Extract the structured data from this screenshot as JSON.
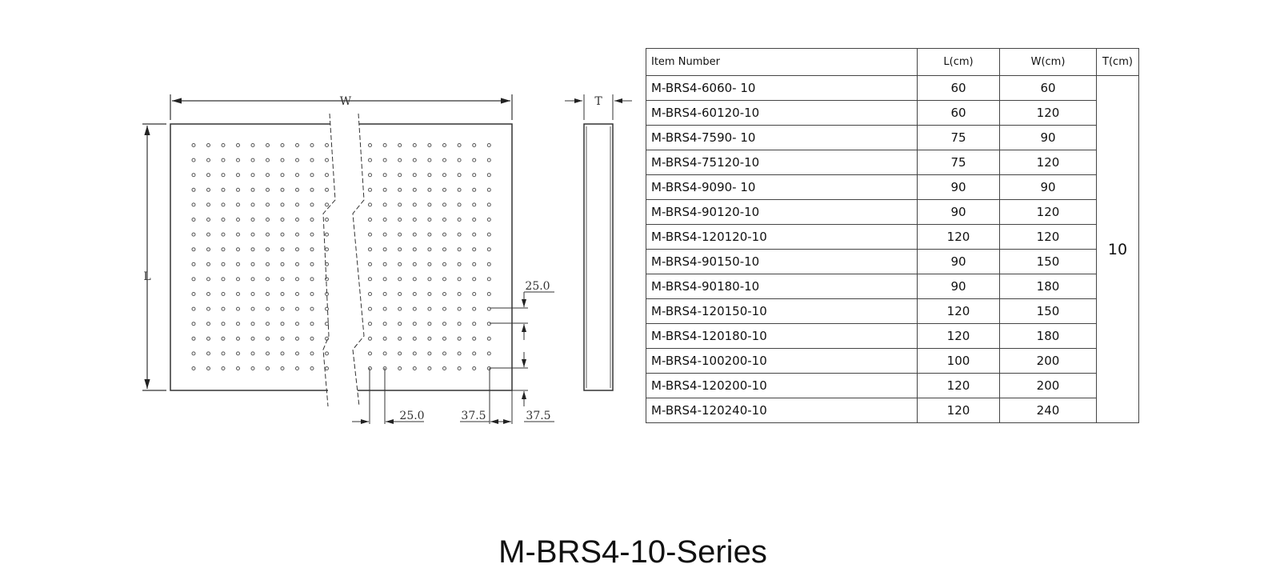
{
  "drawing": {
    "width_label": "W",
    "length_label": "L",
    "thickness_label": "T",
    "dim_hole_pitch_vertical": "25.0",
    "dim_hole_pitch_horizontal": "25.0",
    "dim_edge_offset_horizontal": "37.5",
    "dim_edge_offset_vertical": "37.5"
  },
  "table": {
    "headers": [
      "Item Number",
      "L(cm)",
      "W(cm)",
      "T(cm)"
    ],
    "thickness_value": "10",
    "rows": [
      {
        "item": "M-BRS4-6060- 10",
        "l": "60",
        "w": "60"
      },
      {
        "item": "M-BRS4-60120-10",
        "l": "60",
        "w": "120"
      },
      {
        "item": "M-BRS4-7590- 10",
        "l": "75",
        "w": "90"
      },
      {
        "item": "M-BRS4-75120-10",
        "l": "75",
        "w": "120"
      },
      {
        "item": "M-BRS4-9090- 10",
        "l": "90",
        "w": "90"
      },
      {
        "item": "M-BRS4-90120-10",
        "l": "90",
        "w": "120"
      },
      {
        "item": "M-BRS4-120120-10",
        "l": "120",
        "w": "120"
      },
      {
        "item": "M-BRS4-90150-10",
        "l": "90",
        "w": "150"
      },
      {
        "item": "M-BRS4-90180-10",
        "l": "90",
        "w": "180"
      },
      {
        "item": "M-BRS4-120150-10",
        "l": "120",
        "w": "150"
      },
      {
        "item": "M-BRS4-120180-10",
        "l": "120",
        "w": "180"
      },
      {
        "item": "M-BRS4-100200-10",
        "l": "100",
        "w": "200"
      },
      {
        "item": "M-BRS4-120200-10",
        "l": "120",
        "w": "200"
      },
      {
        "item": "M-BRS4-120240-10",
        "l": "120",
        "w": "240"
      }
    ]
  },
  "title": "M-BRS4-10-Series"
}
